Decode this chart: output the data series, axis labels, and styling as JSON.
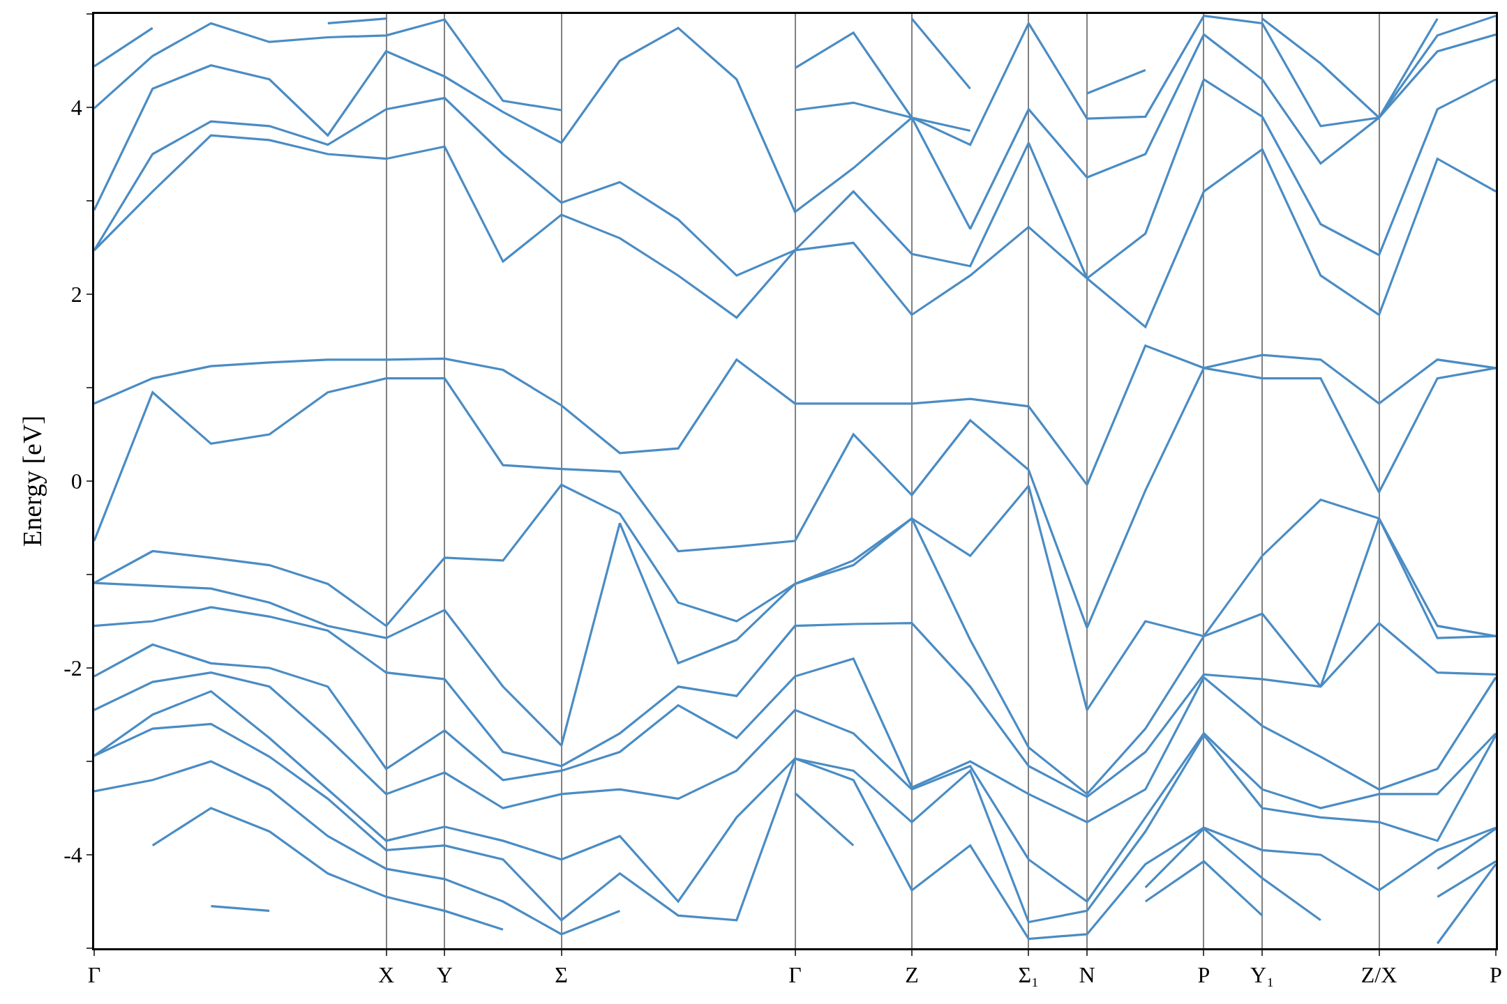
{
  "chart_data": {
    "type": "line",
    "ylabel": "Energy [eV]",
    "color": "#4a8cc4",
    "grid": "x",
    "marker": "none",
    "line_style": "solid",
    "ylim": [
      -5,
      5
    ],
    "categories": [
      "Γ",
      null,
      null,
      null,
      null,
      "X",
      "Y",
      null,
      "Σ",
      null,
      null,
      null,
      "Γ",
      null,
      "Z",
      null,
      "Σ₁",
      "N",
      null,
      "P",
      "Y₁",
      null,
      "Z/X",
      null,
      "P"
    ],
    "yticks": [
      {
        "value": -5,
        "label": null
      },
      -4,
      {
        "value": -3,
        "label": null
      },
      -2,
      {
        "value": -1,
        "label": null
      },
      0,
      {
        "value": 1,
        "label": null
      },
      2,
      {
        "value": 3,
        "label": null
      },
      4,
      {
        "value": 5,
        "label": null
      }
    ],
    "series": [
      {
        "values": [
          null,
          null,
          null,
          null,
          null,
          null,
          null,
          null,
          null,
          null,
          null,
          null,
          null,
          null,
          4.95,
          4.2,
          null,
          null,
          null,
          null,
          null,
          null,
          null,
          null,
          null
        ]
      },
      {
        "values": [
          4.44,
          4.85,
          null,
          null,
          4.9,
          4.95,
          null,
          null,
          null,
          null,
          null,
          null,
          4.42,
          4.8,
          3.89,
          3.75,
          null,
          4.15,
          4.4,
          null,
          4.95,
          4.47,
          3.89,
          4.95,
          null
        ]
      },
      {
        "values": [
          3.99,
          4.55,
          4.9,
          4.7,
          4.75,
          4.77,
          4.94,
          4.07,
          3.97,
          null,
          null,
          null,
          3.97,
          4.05,
          3.89,
          3.6,
          4.9,
          3.88,
          3.9,
          4.98,
          4.9,
          3.8,
          3.89,
          4.77,
          4.98
        ]
      },
      {
        "values": [
          2.9,
          4.2,
          4.45,
          4.3,
          3.7,
          4.6,
          4.33,
          3.95,
          3.62,
          4.5,
          4.85,
          4.3,
          2.88,
          3.35,
          3.89,
          2.7,
          3.98,
          3.25,
          3.5,
          4.78,
          4.3,
          3.4,
          3.89,
          4.6,
          4.78
        ]
      },
      {
        "values": [
          2.47,
          3.5,
          3.85,
          3.8,
          3.6,
          3.98,
          4.1,
          3.5,
          2.98,
          3.2,
          2.8,
          2.2,
          2.47,
          3.1,
          2.43,
          2.3,
          3.62,
          2.17,
          2.65,
          4.3,
          3.9,
          2.75,
          2.42,
          3.98,
          4.3
        ]
      },
      {
        "values": [
          2.47,
          3.1,
          3.7,
          3.65,
          3.5,
          3.45,
          3.58,
          2.35,
          2.85,
          2.6,
          2.2,
          1.75,
          2.47,
          2.55,
          1.78,
          2.2,
          2.72,
          2.17,
          1.65,
          3.1,
          3.55,
          2.2,
          1.78,
          3.45,
          3.1
        ]
      },
      {
        "values": [
          0.83,
          1.1,
          1.23,
          1.27,
          1.3,
          1.3,
          1.31,
          1.19,
          0.81,
          0.3,
          0.35,
          1.3,
          0.83,
          0.83,
          0.83,
          0.88,
          0.8,
          -0.04,
          1.45,
          1.21,
          1.35,
          1.3,
          0.83,
          1.3,
          1.21
        ]
      },
      {
        "values": [
          -0.64,
          0.95,
          0.4,
          0.5,
          0.95,
          1.1,
          1.1,
          0.17,
          0.13,
          0.1,
          -0.75,
          -0.7,
          -0.64,
          0.5,
          -0.15,
          0.65,
          0.12,
          -1.57,
          -0.1,
          1.21,
          1.1,
          1.1,
          -0.12,
          1.1,
          1.21
        ]
      },
      {
        "values": [
          -1.09,
          -0.75,
          -0.82,
          -0.9,
          -1.1,
          -1.55,
          -0.82,
          -0.85,
          -0.04,
          -0.35,
          -1.3,
          -1.5,
          -1.1,
          -0.85,
          -0.4,
          -0.8,
          -0.05,
          -2.45,
          -1.5,
          -1.66,
          -0.8,
          -0.2,
          -0.4,
          -1.55,
          -1.66
        ]
      },
      {
        "values": [
          -1.09,
          -1.12,
          -1.15,
          -1.3,
          -1.55,
          -1.68,
          -1.38,
          -2.2,
          -2.83,
          -0.45,
          -1.95,
          -1.7,
          -1.1,
          -0.9,
          -0.4,
          -1.7,
          -2.85,
          -3.35,
          -2.65,
          -1.66,
          -1.42,
          -2.2,
          -0.4,
          -1.68,
          -1.66
        ]
      },
      {
        "values": [
          -1.55,
          -1.5,
          -1.35,
          -1.45,
          -1.6,
          -2.05,
          -2.12,
          -2.9,
          -3.05,
          -2.7,
          -2.2,
          -2.3,
          -1.55,
          -1.53,
          -1.52,
          -2.2,
          -3.05,
          -3.38,
          -2.9,
          -2.07,
          -2.12,
          -2.2,
          -1.52,
          -2.05,
          -2.07
        ]
      },
      {
        "values": [
          -2.09,
          -1.75,
          -1.95,
          -2.0,
          -2.2,
          -3.08,
          -2.67,
          -3.2,
          -3.1,
          -2.9,
          -2.4,
          -2.75,
          -2.09,
          -1.9,
          -3.28,
          -3.0,
          -3.35,
          -3.65,
          -3.3,
          -2.1,
          -2.62,
          -2.95,
          -3.3,
          -3.08,
          -2.1
        ]
      },
      {
        "values": [
          -2.45,
          -2.15,
          -2.05,
          -2.2,
          -2.75,
          -3.35,
          -3.12,
          -3.5,
          -3.35,
          -3.3,
          -3.4,
          -3.1,
          -2.45,
          -2.7,
          -3.3,
          -3.05,
          -4.05,
          -4.5,
          -3.6,
          -2.7,
          -3.3,
          -3.5,
          -3.35,
          -3.35,
          -2.7
        ]
      },
      {
        "values": [
          -2.94,
          -2.5,
          -2.25,
          -2.75,
          -3.3,
          -3.85,
          -3.7,
          -3.85,
          -4.05,
          -3.8,
          -4.5,
          -3.6,
          -2.97,
          -3.1,
          -3.65,
          -3.1,
          -4.72,
          -4.6,
          -3.75,
          -2.72,
          -3.5,
          -3.6,
          -3.65,
          -3.85,
          -2.72
        ]
      },
      {
        "values": [
          -2.94,
          -2.65,
          -2.6,
          -2.95,
          -3.4,
          -3.95,
          -3.9,
          -4.05,
          -4.7,
          -4.2,
          -4.65,
          -4.7,
          -2.97,
          -3.2,
          -4.38,
          -3.9,
          -4.9,
          -4.85,
          -4.1,
          -3.71,
          -3.95,
          -4.0,
          -4.38,
          -3.95,
          -3.71
        ]
      },
      {
        "values": [
          -3.32,
          -3.2,
          -3.0,
          -3.3,
          -3.8,
          -4.15,
          -4.26,
          -4.5,
          -4.85,
          -4.6,
          null,
          null,
          -3.34,
          -3.9,
          null,
          null,
          null,
          null,
          -4.35,
          -3.72,
          -4.25,
          -4.7,
          null,
          -4.15,
          -3.72
        ]
      },
      {
        "values": [
          null,
          -3.9,
          -3.5,
          -3.75,
          -4.2,
          -4.45,
          -4.6,
          -4.8,
          null,
          null,
          null,
          null,
          null,
          null,
          null,
          null,
          null,
          null,
          -4.5,
          -4.07,
          -4.65,
          null,
          null,
          -4.45,
          -4.07
        ]
      },
      {
        "values": [
          null,
          null,
          -4.55,
          -4.6,
          null,
          null,
          null,
          null,
          null,
          null,
          null,
          null,
          null,
          null,
          null,
          null,
          null,
          null,
          null,
          null,
          null,
          null,
          null,
          -4.95,
          -4.1
        ]
      }
    ]
  }
}
